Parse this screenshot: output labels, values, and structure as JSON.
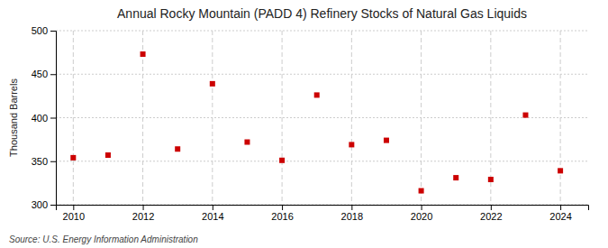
{
  "chart_data": {
    "type": "scatter",
    "title": "Annual Rocky Mountain (PADD 4) Refinery Stocks of Natural Gas Liquids",
    "ylabel": "Thousand Barrels",
    "annotations": [
      "Source: U.S. Energy Information Administration"
    ],
    "x": [
      2010,
      2011,
      2012,
      2013,
      2014,
      2015,
      2016,
      2017,
      2018,
      2019,
      2020,
      2021,
      2022,
      2023,
      2024
    ],
    "values": [
      354,
      357,
      473,
      364,
      439,
      372,
      351,
      426,
      369,
      374,
      316,
      331,
      329,
      403,
      339
    ],
    "color": "#cc0000",
    "marker": "square",
    "xlim": [
      2009.5,
      2024.8
    ],
    "ylim": [
      300,
      500
    ],
    "xticks": [
      2010,
      2012,
      2014,
      2016,
      2018,
      2020,
      2022,
      2024
    ],
    "yticks": [
      300,
      350,
      400,
      450,
      500
    ],
    "grid": true
  }
}
